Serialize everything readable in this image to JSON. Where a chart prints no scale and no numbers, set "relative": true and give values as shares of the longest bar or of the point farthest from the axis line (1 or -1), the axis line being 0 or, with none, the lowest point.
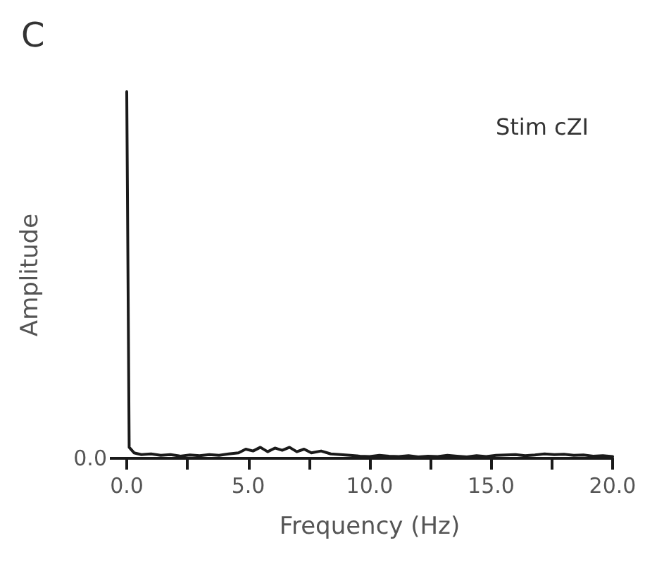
{
  "chart_data": {
    "type": "line",
    "title": "C",
    "xlabel": "Frequency (Hz)",
    "ylabel": "Amplitude",
    "relative": true,
    "color": "#1a1a1a",
    "marker": "none",
    "annotations": [
      "Stim cZI",
      "0.0"
    ],
    "xlim": [
      0,
      20
    ],
    "xticks": [
      {
        "value": 0,
        "label": "0.0"
      },
      {
        "value": 2.5,
        "label": null
      },
      {
        "value": 5,
        "label": "5.0"
      },
      {
        "value": 7.5,
        "label": null
      },
      {
        "value": 10,
        "label": "10.0"
      },
      {
        "value": 12.5,
        "label": null
      },
      {
        "value": 15,
        "label": "15.0"
      },
      {
        "value": 17.5,
        "label": null
      },
      {
        "value": 20,
        "label": "20.0"
      }
    ],
    "x": [
      0,
      0.1,
      0.3,
      0.6,
      1.0,
      1.4,
      1.8,
      2.2,
      2.6,
      3.0,
      3.4,
      3.8,
      4.2,
      4.6,
      4.9,
      5.2,
      5.5,
      5.8,
      6.1,
      6.4,
      6.7,
      7.0,
      7.3,
      7.6,
      8.0,
      8.4,
      8.8,
      9.2,
      9.6,
      10.0,
      10.4,
      10.8,
      11.2,
      11.6,
      12.0,
      12.4,
      12.8,
      13.2,
      13.6,
      14.0,
      14.4,
      14.8,
      15.2,
      15.6,
      16.0,
      16.4,
      16.8,
      17.2,
      17.6,
      18.0,
      18.4,
      18.8,
      19.2,
      19.6,
      20.0
    ],
    "values": [
      1,
      0.03,
      0.015,
      0.01,
      0.012,
      0.008,
      0.01,
      0.006,
      0.009,
      0.007,
      0.01,
      0.008,
      0.012,
      0.015,
      0.025,
      0.02,
      0.03,
      0.018,
      0.028,
      0.022,
      0.03,
      0.018,
      0.025,
      0.015,
      0.02,
      0.012,
      0.01,
      0.008,
      0.006,
      0.005,
      0.008,
      0.006,
      0.005,
      0.007,
      0.004,
      0.006,
      0.005,
      0.008,
      0.006,
      0.004,
      0.007,
      0.005,
      0.008,
      0.009,
      0.01,
      0.007,
      0.009,
      0.012,
      0.01,
      0.011,
      0.008,
      0.009,
      0.006,
      0.007,
      0.005
    ]
  }
}
